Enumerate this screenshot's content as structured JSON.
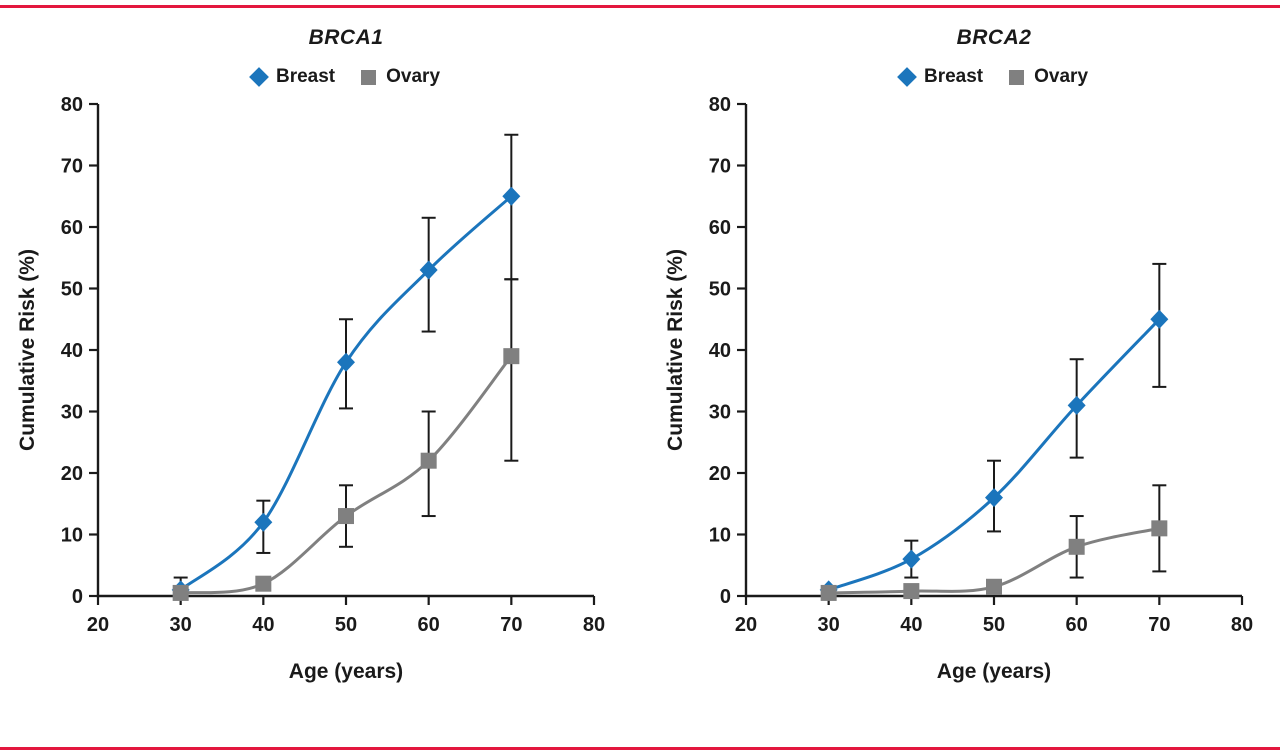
{
  "page": {
    "rule_color": "#e3173e",
    "background": "#ffffff",
    "axis_color": "#1a1a1a",
    "error_bar_color": "#1a1a1a"
  },
  "chart_data": [
    {
      "type": "line",
      "title": "BRCA1",
      "xlabel": "Age (years)",
      "ylabel": "Cumulative Risk (%)",
      "xlim": [
        20,
        80
      ],
      "ylim": [
        0,
        80
      ],
      "xticks": [
        20,
        30,
        40,
        50,
        60,
        70,
        80
      ],
      "yticks": [
        0,
        10,
        20,
        30,
        40,
        50,
        60,
        70,
        80
      ],
      "x": [
        30,
        40,
        50,
        60,
        70
      ],
      "legend_position": "top",
      "grid": false,
      "series": [
        {
          "name": "Breast",
          "marker": "diamond",
          "color": "#1b75bc",
          "values": [
            1,
            12,
            38,
            53,
            65
          ],
          "err_low": [
            0,
            7,
            30.5,
            43,
            51.5
          ],
          "err_high": [
            3,
            15.5,
            45,
            61.5,
            75
          ]
        },
        {
          "name": "Ovary",
          "marker": "square",
          "color": "#808080",
          "values": [
            0.5,
            2,
            13,
            22,
            39
          ],
          "err_low": [
            null,
            null,
            8,
            13,
            22
          ],
          "err_high": [
            null,
            null,
            18,
            30,
            51.5
          ]
        }
      ]
    },
    {
      "type": "line",
      "title": "BRCA2",
      "xlabel": "Age (years)",
      "ylabel": "Cumulative Risk (%)",
      "xlim": [
        20,
        80
      ],
      "ylim": [
        0,
        80
      ],
      "xticks": [
        20,
        30,
        40,
        50,
        60,
        70,
        80
      ],
      "yticks": [
        0,
        10,
        20,
        30,
        40,
        50,
        60,
        70,
        80
      ],
      "x": [
        30,
        40,
        50,
        60,
        70
      ],
      "legend_position": "top",
      "grid": false,
      "series": [
        {
          "name": "Breast",
          "marker": "diamond",
          "color": "#1b75bc",
          "values": [
            1,
            6,
            16,
            31,
            45
          ],
          "err_low": [
            null,
            3,
            10.5,
            22.5,
            34
          ],
          "err_high": [
            null,
            9,
            22,
            38.5,
            54
          ]
        },
        {
          "name": "Ovary",
          "marker": "square",
          "color": "#808080",
          "values": [
            0.5,
            0.8,
            1.5,
            8,
            11
          ],
          "err_low": [
            null,
            null,
            null,
            3,
            4
          ],
          "err_high": [
            null,
            null,
            null,
            13,
            18
          ]
        }
      ]
    }
  ]
}
